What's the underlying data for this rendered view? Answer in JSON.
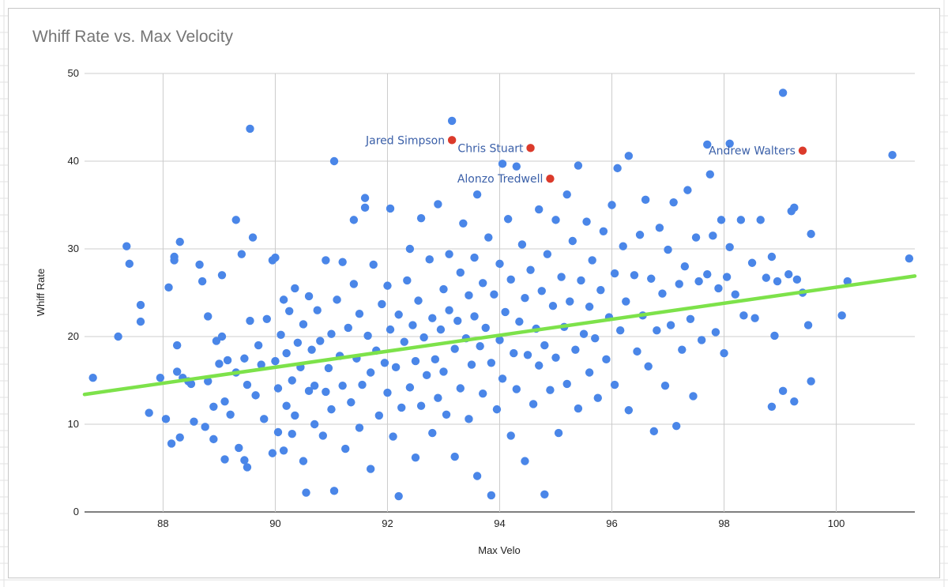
{
  "chart_data": {
    "type": "scatter",
    "title": "Whiff Rate vs. Max Velocity",
    "xlabel": "Max Velo",
    "ylabel": "Whiff Rate",
    "xlim": [
      86.6,
      101.4
    ],
    "ylim": [
      0,
      50
    ],
    "xticks": [
      88,
      90,
      92,
      94,
      96,
      98,
      100
    ],
    "yticks": [
      0,
      10,
      20,
      30,
      40,
      50
    ],
    "grid": true,
    "legend": "none",
    "colors": {
      "points": "#4a86e8",
      "highlight": "#db3a2b",
      "trendline": "#7de24a",
      "annotation": "#3a5fa8"
    },
    "trendline": {
      "x": [
        86.6,
        101.4
      ],
      "y": [
        13.4,
        26.9
      ]
    },
    "highlighted": [
      {
        "name": "Jared Simpson",
        "x": 93.15,
        "y": 42.4
      },
      {
        "name": "Chris Stuart",
        "x": 94.55,
        "y": 41.5
      },
      {
        "name": "Alonzo Tredwell",
        "x": 94.9,
        "y": 38.0
      },
      {
        "name": "Andrew Walters",
        "x": 99.4,
        "y": 41.2
      }
    ],
    "points": [
      [
        86.75,
        15.3
      ],
      [
        87.2,
        20.0
      ],
      [
        87.35,
        30.3
      ],
      [
        87.4,
        28.3
      ],
      [
        87.6,
        23.6
      ],
      [
        87.6,
        21.7
      ],
      [
        87.75,
        11.3
      ],
      [
        87.95,
        15.3
      ],
      [
        88.05,
        10.6
      ],
      [
        88.1,
        25.6
      ],
      [
        88.15,
        7.8
      ],
      [
        88.2,
        29.1
      ],
      [
        88.2,
        28.7
      ],
      [
        88.25,
        19.0
      ],
      [
        88.25,
        16.0
      ],
      [
        88.3,
        8.5
      ],
      [
        88.3,
        30.8
      ],
      [
        88.35,
        15.3
      ],
      [
        88.45,
        14.9
      ],
      [
        88.5,
        14.6
      ],
      [
        88.55,
        10.3
      ],
      [
        88.65,
        28.2
      ],
      [
        88.7,
        26.3
      ],
      [
        88.75,
        9.7
      ],
      [
        88.8,
        22.3
      ],
      [
        88.8,
        14.9
      ],
      [
        88.9,
        12.0
      ],
      [
        88.9,
        8.3
      ],
      [
        88.95,
        19.5
      ],
      [
        89.0,
        16.9
      ],
      [
        89.05,
        27.0
      ],
      [
        89.05,
        20.0
      ],
      [
        89.1,
        12.6
      ],
      [
        89.1,
        6.0
      ],
      [
        89.15,
        17.3
      ],
      [
        89.2,
        11.1
      ],
      [
        89.3,
        33.3
      ],
      [
        89.3,
        15.9
      ],
      [
        89.35,
        7.3
      ],
      [
        89.4,
        29.4
      ],
      [
        89.45,
        5.9
      ],
      [
        89.45,
        17.5
      ],
      [
        89.5,
        14.5
      ],
      [
        89.5,
        5.1
      ],
      [
        89.55,
        43.7
      ],
      [
        89.55,
        21.8
      ],
      [
        89.6,
        31.3
      ],
      [
        89.65,
        13.3
      ],
      [
        89.7,
        19.0
      ],
      [
        89.75,
        16.8
      ],
      [
        89.8,
        10.6
      ],
      [
        89.85,
        22.0
      ],
      [
        89.95,
        6.7
      ],
      [
        89.95,
        28.7
      ],
      [
        90.0,
        29.0
      ],
      [
        90.0,
        17.2
      ],
      [
        90.05,
        14.1
      ],
      [
        90.05,
        9.1
      ],
      [
        90.1,
        20.2
      ],
      [
        90.15,
        7.0
      ],
      [
        90.15,
        24.2
      ],
      [
        90.2,
        18.1
      ],
      [
        90.2,
        12.1
      ],
      [
        90.25,
        22.9
      ],
      [
        90.3,
        15.0
      ],
      [
        90.3,
        8.9
      ],
      [
        90.35,
        25.5
      ],
      [
        90.35,
        11.0
      ],
      [
        90.4,
        19.3
      ],
      [
        90.45,
        16.5
      ],
      [
        90.5,
        5.8
      ],
      [
        90.5,
        21.4
      ],
      [
        90.55,
        2.2
      ],
      [
        90.6,
        13.8
      ],
      [
        90.6,
        24.6
      ],
      [
        90.65,
        18.5
      ],
      [
        90.7,
        10.0
      ],
      [
        90.7,
        14.4
      ],
      [
        90.75,
        23.0
      ],
      [
        90.8,
        19.5
      ],
      [
        90.85,
        8.7
      ],
      [
        90.9,
        13.7
      ],
      [
        90.9,
        28.7
      ],
      [
        90.95,
        16.4
      ],
      [
        91.0,
        20.3
      ],
      [
        91.0,
        11.7
      ],
      [
        91.05,
        40.0
      ],
      [
        91.05,
        2.4
      ],
      [
        91.1,
        24.2
      ],
      [
        91.15,
        17.8
      ],
      [
        91.2,
        14.4
      ],
      [
        91.2,
        28.5
      ],
      [
        91.25,
        7.2
      ],
      [
        91.3,
        21.0
      ],
      [
        91.35,
        12.5
      ],
      [
        91.4,
        26.0
      ],
      [
        91.4,
        33.3
      ],
      [
        91.45,
        17.5
      ],
      [
        91.5,
        9.6
      ],
      [
        91.5,
        22.6
      ],
      [
        91.55,
        14.5
      ],
      [
        91.6,
        35.8
      ],
      [
        91.6,
        34.7
      ],
      [
        91.65,
        20.1
      ],
      [
        91.7,
        15.9
      ],
      [
        91.7,
        4.9
      ],
      [
        91.75,
        28.2
      ],
      [
        91.8,
        18.4
      ],
      [
        91.85,
        11.0
      ],
      [
        91.9,
        23.7
      ],
      [
        91.95,
        17.0
      ],
      [
        92.0,
        25.8
      ],
      [
        92.0,
        13.6
      ],
      [
        92.05,
        34.6
      ],
      [
        92.05,
        20.8
      ],
      [
        92.1,
        8.6
      ],
      [
        92.15,
        16.5
      ],
      [
        92.2,
        22.5
      ],
      [
        92.2,
        1.8
      ],
      [
        92.25,
        11.9
      ],
      [
        92.3,
        19.4
      ],
      [
        92.35,
        26.4
      ],
      [
        92.4,
        14.2
      ],
      [
        92.4,
        30.0
      ],
      [
        92.45,
        21.3
      ],
      [
        92.5,
        17.2
      ],
      [
        92.5,
        6.2
      ],
      [
        92.55,
        24.1
      ],
      [
        92.6,
        33.5
      ],
      [
        92.6,
        12.1
      ],
      [
        92.65,
        19.9
      ],
      [
        92.7,
        15.6
      ],
      [
        92.75,
        28.8
      ],
      [
        92.8,
        22.1
      ],
      [
        92.8,
        9.0
      ],
      [
        92.85,
        17.4
      ],
      [
        92.9,
        35.1
      ],
      [
        92.9,
        13.0
      ],
      [
        92.95,
        20.8
      ],
      [
        93.0,
        25.4
      ],
      [
        93.0,
        16.0
      ],
      [
        93.05,
        11.1
      ],
      [
        93.1,
        29.4
      ],
      [
        93.1,
        23.0
      ],
      [
        93.15,
        44.6
      ],
      [
        93.2,
        18.6
      ],
      [
        93.2,
        6.3
      ],
      [
        93.25,
        21.8
      ],
      [
        93.3,
        27.3
      ],
      [
        93.3,
        14.1
      ],
      [
        93.35,
        32.9
      ],
      [
        93.4,
        19.8
      ],
      [
        93.45,
        24.7
      ],
      [
        93.45,
        10.6
      ],
      [
        93.5,
        16.8
      ],
      [
        93.55,
        29.0
      ],
      [
        93.55,
        22.3
      ],
      [
        93.6,
        36.2
      ],
      [
        93.6,
        4.1
      ],
      [
        93.65,
        18.9
      ],
      [
        93.7,
        26.1
      ],
      [
        93.7,
        13.5
      ],
      [
        93.75,
        21.0
      ],
      [
        93.8,
        31.3
      ],
      [
        93.85,
        17.0
      ],
      [
        93.85,
        1.9
      ],
      [
        93.9,
        24.8
      ],
      [
        93.95,
        11.7
      ],
      [
        94.0,
        28.3
      ],
      [
        94.0,
        19.6
      ],
      [
        94.05,
        39.7
      ],
      [
        94.05,
        15.2
      ],
      [
        94.1,
        22.8
      ],
      [
        94.15,
        33.4
      ],
      [
        94.2,
        8.7
      ],
      [
        94.2,
        26.5
      ],
      [
        94.25,
        18.1
      ],
      [
        94.3,
        39.4
      ],
      [
        94.3,
        14.0
      ],
      [
        94.35,
        21.7
      ],
      [
        94.4,
        30.5
      ],
      [
        94.45,
        24.4
      ],
      [
        94.45,
        5.8
      ],
      [
        94.5,
        17.9
      ],
      [
        94.55,
        27.6
      ],
      [
        94.6,
        12.3
      ],
      [
        94.65,
        20.9
      ],
      [
        94.7,
        34.5
      ],
      [
        94.7,
        16.7
      ],
      [
        94.75,
        25.2
      ],
      [
        94.8,
        2.0
      ],
      [
        94.8,
        19.0
      ],
      [
        94.85,
        29.4
      ],
      [
        94.9,
        13.9
      ],
      [
        94.95,
        23.5
      ],
      [
        95.0,
        33.3
      ],
      [
        95.0,
        17.6
      ],
      [
        95.05,
        9.0
      ],
      [
        95.1,
        26.8
      ],
      [
        95.15,
        21.1
      ],
      [
        95.2,
        36.2
      ],
      [
        95.2,
        14.6
      ],
      [
        95.25,
        24.0
      ],
      [
        95.3,
        30.9
      ],
      [
        95.35,
        18.5
      ],
      [
        95.4,
        39.5
      ],
      [
        95.4,
        11.8
      ],
      [
        95.45,
        26.4
      ],
      [
        95.5,
        20.3
      ],
      [
        95.55,
        33.1
      ],
      [
        95.6,
        15.9
      ],
      [
        95.6,
        23.4
      ],
      [
        95.65,
        28.7
      ],
      [
        95.7,
        19.8
      ],
      [
        95.75,
        13.0
      ],
      [
        95.8,
        25.3
      ],
      [
        95.85,
        32.0
      ],
      [
        95.9,
        17.4
      ],
      [
        95.95,
        22.2
      ],
      [
        96.0,
        35.0
      ],
      [
        96.05,
        27.2
      ],
      [
        96.05,
        14.5
      ],
      [
        96.1,
        39.2
      ],
      [
        96.15,
        20.7
      ],
      [
        96.2,
        30.3
      ],
      [
        96.25,
        24.0
      ],
      [
        96.3,
        40.6
      ],
      [
        96.3,
        11.6
      ],
      [
        96.4,
        27.0
      ],
      [
        96.45,
        18.3
      ],
      [
        96.5,
        31.6
      ],
      [
        96.55,
        22.4
      ],
      [
        96.6,
        35.6
      ],
      [
        96.65,
        16.6
      ],
      [
        96.7,
        26.6
      ],
      [
        96.75,
        9.2
      ],
      [
        96.8,
        20.7
      ],
      [
        96.85,
        32.4
      ],
      [
        96.9,
        24.9
      ],
      [
        96.95,
        14.4
      ],
      [
        97.0,
        29.9
      ],
      [
        97.05,
        21.3
      ],
      [
        97.1,
        35.3
      ],
      [
        97.15,
        9.8
      ],
      [
        97.2,
        26.0
      ],
      [
        97.25,
        18.5
      ],
      [
        97.3,
        28.0
      ],
      [
        97.35,
        36.7
      ],
      [
        97.4,
        22.0
      ],
      [
        97.45,
        13.2
      ],
      [
        97.5,
        31.3
      ],
      [
        97.55,
        26.3
      ],
      [
        97.6,
        19.6
      ],
      [
        97.7,
        41.9
      ],
      [
        97.7,
        27.1
      ],
      [
        97.75,
        38.5
      ],
      [
        97.8,
        31.5
      ],
      [
        97.85,
        20.5
      ],
      [
        97.9,
        25.5
      ],
      [
        97.95,
        33.3
      ],
      [
        98.0,
        18.1
      ],
      [
        98.05,
        26.8
      ],
      [
        98.1,
        42.0
      ],
      [
        98.1,
        30.2
      ],
      [
        98.2,
        24.8
      ],
      [
        98.3,
        33.3
      ],
      [
        98.35,
        22.4
      ],
      [
        98.5,
        28.4
      ],
      [
        98.55,
        22.1
      ],
      [
        98.65,
        33.3
      ],
      [
        98.75,
        26.7
      ],
      [
        98.85,
        29.1
      ],
      [
        98.85,
        12.0
      ],
      [
        98.9,
        20.1
      ],
      [
        98.95,
        26.3
      ],
      [
        99.05,
        47.8
      ],
      [
        99.05,
        13.8
      ],
      [
        99.15,
        27.1
      ],
      [
        99.2,
        34.3
      ],
      [
        99.25,
        34.7
      ],
      [
        99.25,
        12.6
      ],
      [
        99.3,
        26.5
      ],
      [
        99.4,
        25.0
      ],
      [
        99.5,
        21.3
      ],
      [
        99.55,
        31.7
      ],
      [
        99.55,
        14.9
      ],
      [
        100.1,
        22.4
      ],
      [
        100.2,
        26.3
      ],
      [
        101.0,
        40.7
      ],
      [
        101.3,
        28.9
      ]
    ]
  }
}
